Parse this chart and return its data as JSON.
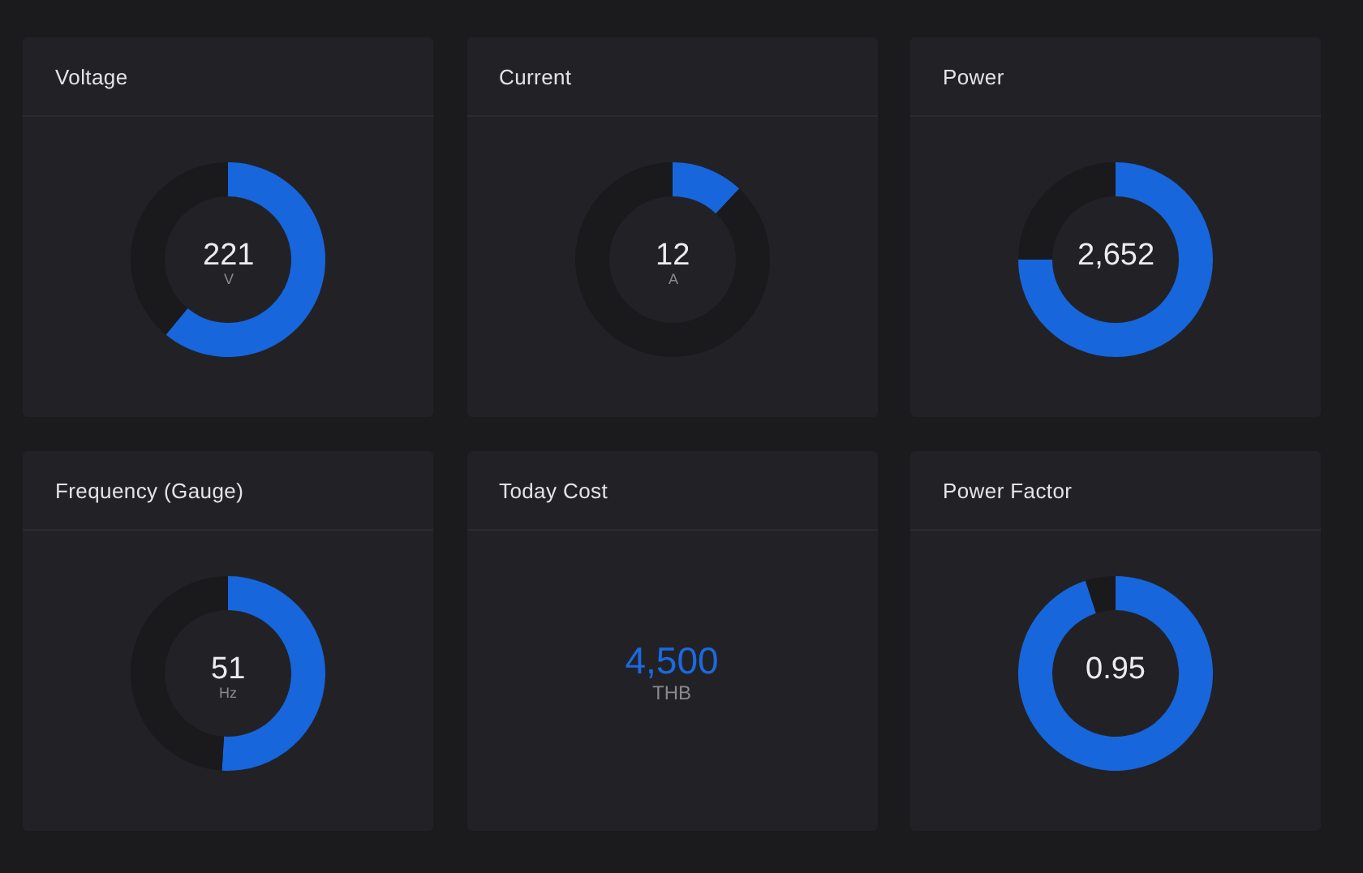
{
  "chart_data": [
    {
      "type": "donut",
      "title": "Voltage",
      "categories": [
        null,
        null
      ],
      "values": [
        61,
        39
      ],
      "colors": [
        "#1766dc",
        "#1a1a1d"
      ],
      "annotations": [
        "221",
        "V"
      ]
    },
    {
      "type": "donut",
      "title": "Current",
      "categories": [
        null,
        null
      ],
      "values": [
        12,
        88
      ],
      "colors": [
        "#1766dc",
        "#1a1a1d"
      ],
      "annotations": [
        "12",
        "A"
      ]
    },
    {
      "type": "donut",
      "title": "Power",
      "categories": [
        null,
        null
      ],
      "values": [
        75,
        25
      ],
      "colors": [
        "#1766dc",
        "#1a1a1d"
      ],
      "annotations": [
        "2,652"
      ]
    },
    {
      "type": "donut",
      "title": "Frequency (Gauge)",
      "categories": [
        null,
        null
      ],
      "values": [
        51,
        49
      ],
      "colors": [
        "#1766dc",
        "#1a1a1d"
      ],
      "annotations": [
        "51",
        "Hz"
      ]
    },
    {
      "type": "other",
      "title": "Today Cost",
      "annotations": [
        "4,500",
        "THB"
      ]
    },
    {
      "type": "donut",
      "title": "Power Factor",
      "categories": [
        null,
        null
      ],
      "values": [
        95,
        5
      ],
      "colors": [
        "#1766dc",
        "#1a1a1d"
      ],
      "annotations": [
        "0.95"
      ]
    }
  ]
}
